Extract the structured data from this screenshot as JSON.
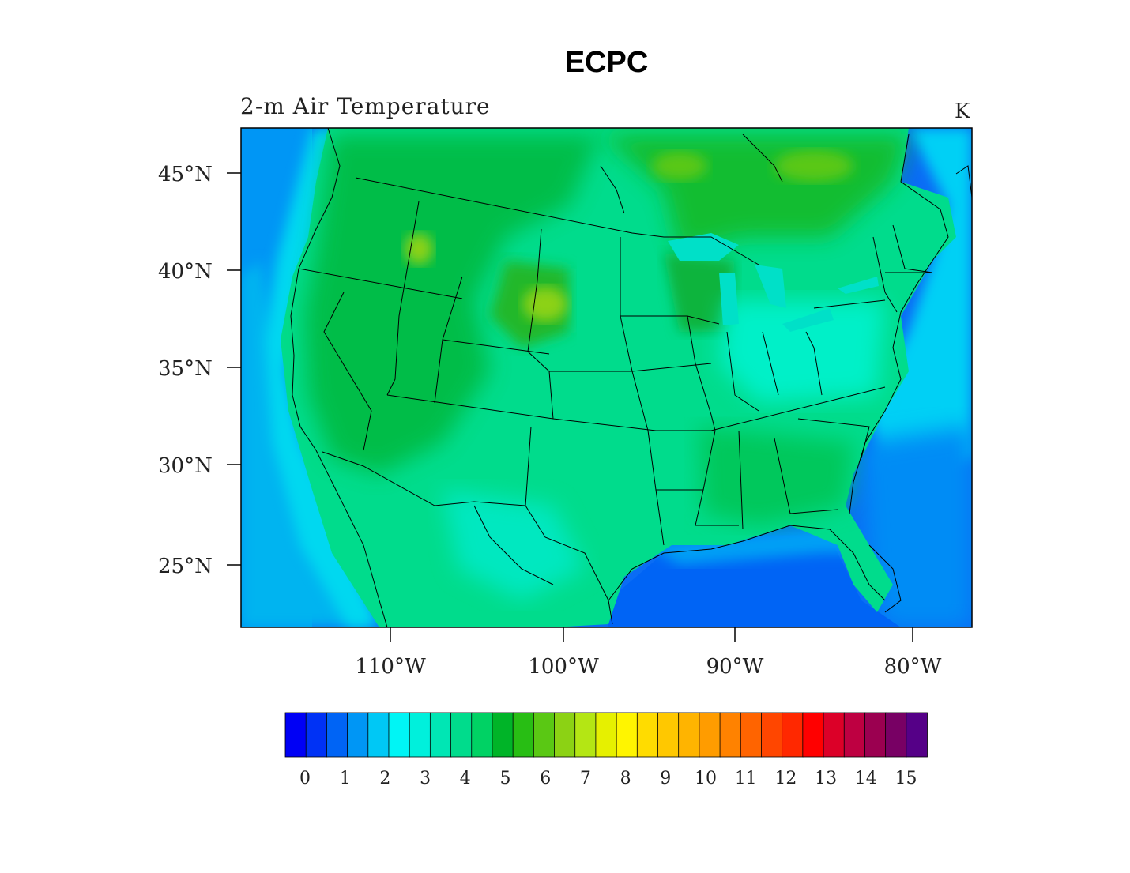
{
  "title": "ECPC",
  "subtitle": "2-m Air Temperature",
  "units": "K",
  "map": {
    "lat_ticks": [
      "45°N",
      "40°N",
      "35°N",
      "30°N",
      "25°N"
    ],
    "lon_ticks": [
      "110°W",
      "100°W",
      "90°W",
      "80°W"
    ],
    "ocean_color": "#0a6cf5",
    "land_color": "#12c060"
  },
  "colorbar": {
    "colors": [
      "#0000f5",
      "#0032f5",
      "#0064f5",
      "#0096f5",
      "#00c8f5",
      "#00f5f5",
      "#00f0dc",
      "#00e6b4",
      "#00dc8c",
      "#00d264",
      "#00b428",
      "#28be14",
      "#5ac814",
      "#8cd214",
      "#b4e614",
      "#e6f000",
      "#fff500",
      "#ffdc00",
      "#ffc800",
      "#ffb400",
      "#ff9c00",
      "#ff8200",
      "#ff6400",
      "#ff4600",
      "#ff2800",
      "#ff0000",
      "#dc0028",
      "#be0041",
      "#9b0050",
      "#780064",
      "#550087"
    ],
    "labels": [
      "0",
      "1",
      "2",
      "3",
      "4",
      "5",
      "6",
      "7",
      "8",
      "9",
      "10",
      "11",
      "12",
      "13",
      "14",
      "15"
    ]
  }
}
